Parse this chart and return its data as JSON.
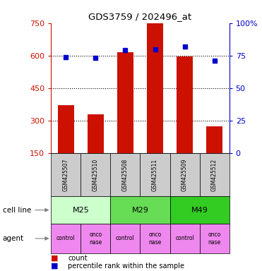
{
  "title": "GDS3759 / 202496_at",
  "samples": [
    "GSM425507",
    "GSM425510",
    "GSM425508",
    "GSM425511",
    "GSM425509",
    "GSM425512"
  ],
  "counts": [
    370,
    330,
    615,
    750,
    595,
    275
  ],
  "percentiles": [
    74,
    73,
    79,
    80,
    82,
    71
  ],
  "ylim_left": [
    150,
    750
  ],
  "ylim_right": [
    0,
    100
  ],
  "yticks_left": [
    150,
    300,
    450,
    600,
    750
  ],
  "ytick_labels_left": [
    "150",
    "300",
    "450",
    "600",
    "750"
  ],
  "yticks_right": [
    0,
    25,
    50,
    75,
    100
  ],
  "ytick_labels_right": [
    "0",
    "25",
    "50",
    "75",
    "100%"
  ],
  "hgrid_lines": [
    300,
    450,
    600
  ],
  "cell_lines": [
    [
      "M25",
      0,
      2
    ],
    [
      "M29",
      2,
      4
    ],
    [
      "M49",
      4,
      6
    ]
  ],
  "agents": [
    "control",
    "onconase",
    "control",
    "onconase",
    "control",
    "onconase"
  ],
  "cell_line_colors": {
    "M25": "#ccffcc",
    "M29": "#66dd55",
    "M49": "#33cc22"
  },
  "agent_color": "#ee88ee",
  "bar_color": "#cc1100",
  "dot_color": "#0000cc",
  "sample_box_color": "#cccccc",
  "bg_color": "#ffffff"
}
